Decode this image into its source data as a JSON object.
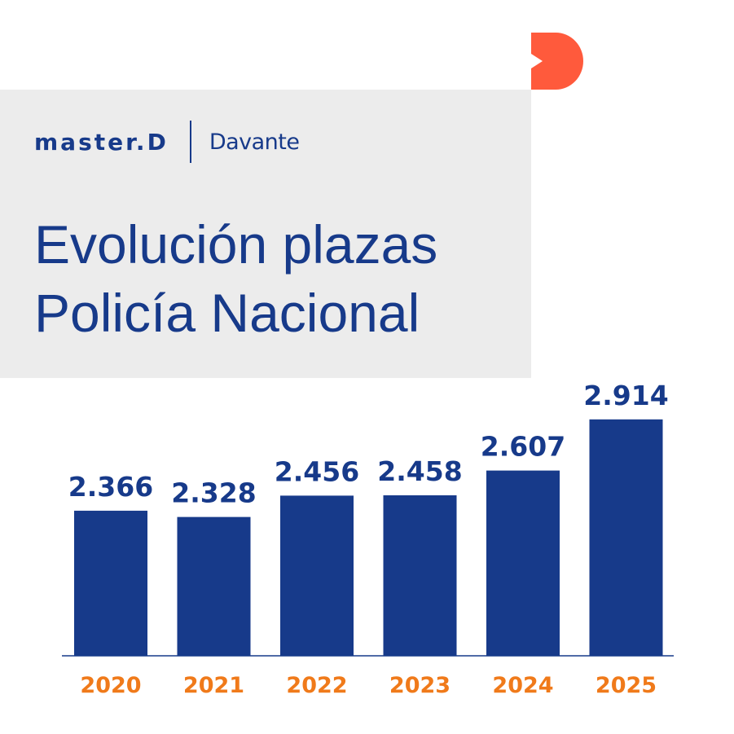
{
  "header": {
    "logo_primary": "master.D",
    "logo_secondary": "Davante",
    "title_line1": "Evolución plazas",
    "title_line2": "Policía Nacional"
  },
  "colors": {
    "bar": "#173a8a",
    "value_text": "#173a8a",
    "tick_text": "#f07a1a",
    "panel": "#ececec",
    "accent": "#ff5a3c"
  },
  "chart_data": {
    "type": "bar",
    "categories": [
      "2020",
      "2021",
      "2022",
      "2023",
      "2024",
      "2025"
    ],
    "values": [
      2366,
      2328,
      2456,
      2458,
      2607,
      2914
    ],
    "value_labels": [
      "2.366",
      "2.328",
      "2.456",
      "2.458",
      "2.607",
      "2.914"
    ],
    "grid": false,
    "legend": "none"
  }
}
